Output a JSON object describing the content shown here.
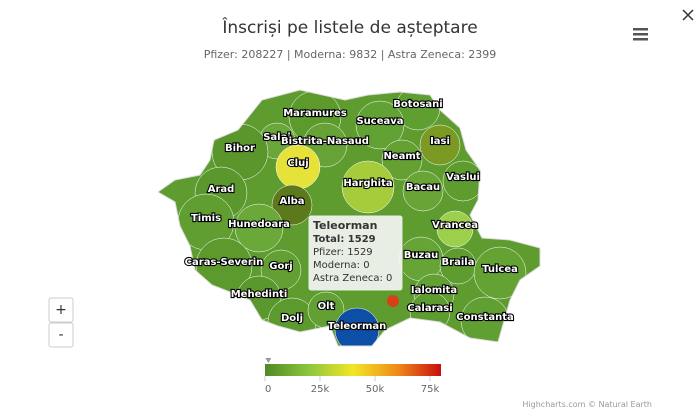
{
  "chart_data": {
    "type": "map",
    "title": "Înscriși pe listele de așteptare",
    "subtitle": "Pfizer: 208227 | Moderna: 9832 | Astra Zeneca: 2399",
    "regions": [
      {
        "name": "Maramures",
        "color": "#5c9a2c"
      },
      {
        "name": "Botosani",
        "color": "#5f9e30"
      },
      {
        "name": "Suceava",
        "color": "#62a234"
      },
      {
        "name": "Salaj",
        "color": "#6aa63a"
      },
      {
        "name": "Bistrita-Nasaud",
        "color": "#66a236"
      },
      {
        "name": "Iasi",
        "color": "#7a9a24"
      },
      {
        "name": "Bihor",
        "color": "#5a962c"
      },
      {
        "name": "Cluj",
        "color": "#e6e23a"
      },
      {
        "name": "Neamt",
        "color": "#64a032"
      },
      {
        "name": "Vaslui",
        "color": "#5e9c30"
      },
      {
        "name": "Harghita",
        "color": "#a6cc3c"
      },
      {
        "name": "Bacau",
        "color": "#68a436"
      },
      {
        "name": "Arad",
        "color": "#5a982e"
      },
      {
        "name": "Alba",
        "color": "#5c7a1c"
      },
      {
        "name": "Timis",
        "color": "#609e32"
      },
      {
        "name": "Hunedoara",
        "color": "#6aa83a"
      },
      {
        "name": "Vrancea",
        "color": "#9cd04c"
      },
      {
        "name": "Caras-Severin",
        "color": "#5c9a2e"
      },
      {
        "name": "Gorj",
        "color": "#62a034"
      },
      {
        "name": "Buzau",
        "color": "#66a436"
      },
      {
        "name": "Braila",
        "color": "#5e9c30"
      },
      {
        "name": "Tulcea",
        "color": "#64a234"
      },
      {
        "name": "Mehedinti",
        "color": "#5a982e"
      },
      {
        "name": "Ialomita",
        "color": "#62a034"
      },
      {
        "name": "Calarasi",
        "color": "#5e9c30"
      },
      {
        "name": "Constanta",
        "color": "#60a032"
      },
      {
        "name": "Dolj",
        "color": "#5c9a2e"
      },
      {
        "name": "Olt",
        "color": "#62a034"
      },
      {
        "name": "Teleorman",
        "color": "#0d4ea6",
        "value": 1529
      }
    ],
    "tooltip": {
      "title": "Teleorman",
      "lines": [
        "Total: 1529",
        "Pfizer: 1529",
        "Moderna: 0",
        "Astra Zeneca: 0"
      ]
    },
    "color_axis": {
      "range": [
        0,
        80000
      ],
      "colors": [
        "#4f8a24",
        "#8cc63e",
        "#f2e625",
        "#f08c18",
        "#c80e0e"
      ],
      "ticks": [
        0,
        {
          "value": 25000,
          "label": "25k"
        },
        {
          "value": 50000,
          "label": "50k"
        },
        {
          "value": 75000,
          "label": "75k"
        }
      ]
    },
    "zoom": [
      "+",
      "-"
    ],
    "credits": "Highcharts.com © Natural Earth"
  }
}
